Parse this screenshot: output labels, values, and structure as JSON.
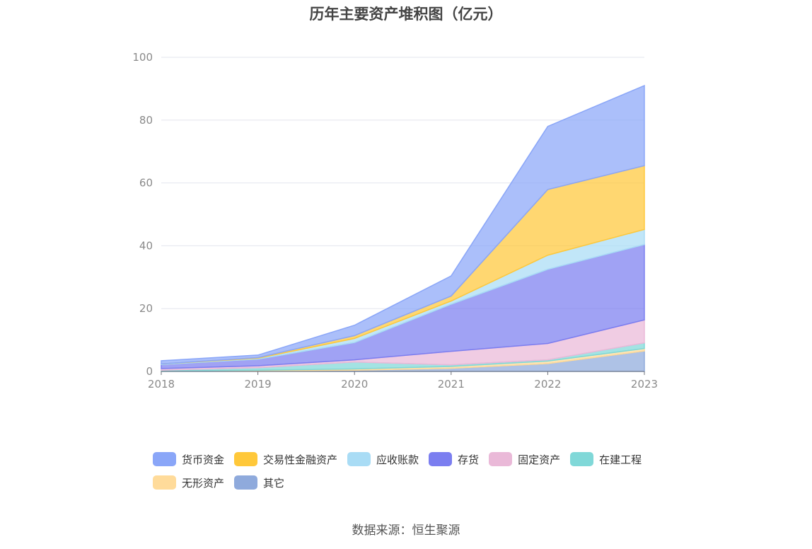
{
  "chart_data": {
    "type": "area",
    "stacked": true,
    "title": "历年主要资产堆积图（亿元）",
    "x": [
      "2018",
      "2019",
      "2020",
      "2021",
      "2022",
      "2023"
    ],
    "ylim": [
      0,
      100
    ],
    "yticks": [
      0,
      20,
      40,
      60,
      80,
      100
    ],
    "grid": true,
    "legend_position": "bottom",
    "series": [
      {
        "name": "其它",
        "color": "#8faadc",
        "values": [
          0.1,
          0.2,
          0.4,
          1.0,
          2.5,
          6.5
        ]
      },
      {
        "name": "无形资产",
        "color": "#ffdb9a",
        "values": [
          0.1,
          0.2,
          0.4,
          0.6,
          0.8,
          0.8
        ]
      },
      {
        "name": "在建工程",
        "color": "#80d8d8",
        "values": [
          0.2,
          0.8,
          2.2,
          0.5,
          0.4,
          1.8
        ]
      },
      {
        "name": "固定资产",
        "color": "#eab9d8",
        "values": [
          0.5,
          0.6,
          0.7,
          4.3,
          5.2,
          7.3
        ]
      },
      {
        "name": "存货",
        "color": "#7b7ef0",
        "values": [
          1.3,
          2.1,
          5.5,
          15.0,
          23.6,
          24.0
        ]
      },
      {
        "name": "应收账款",
        "color": "#a9dcf5",
        "values": [
          0.2,
          0.3,
          1.3,
          1.0,
          4.5,
          4.8
        ]
      },
      {
        "name": "交易性金融资产",
        "color": "#ffc83a",
        "values": [
          0.0,
          0.2,
          0.9,
          1.6,
          20.9,
          20.3
        ]
      },
      {
        "name": "货币资金",
        "color": "#8aa6f8",
        "values": [
          1.0,
          0.8,
          3.3,
          6.4,
          20.1,
          25.5
        ]
      }
    ],
    "legend_order": [
      "货币资金",
      "交易性金融资产",
      "应收账款",
      "存货",
      "固定资产",
      "在建工程",
      "无形资产",
      "其它"
    ]
  },
  "source_text": "数据来源：恒生聚源"
}
